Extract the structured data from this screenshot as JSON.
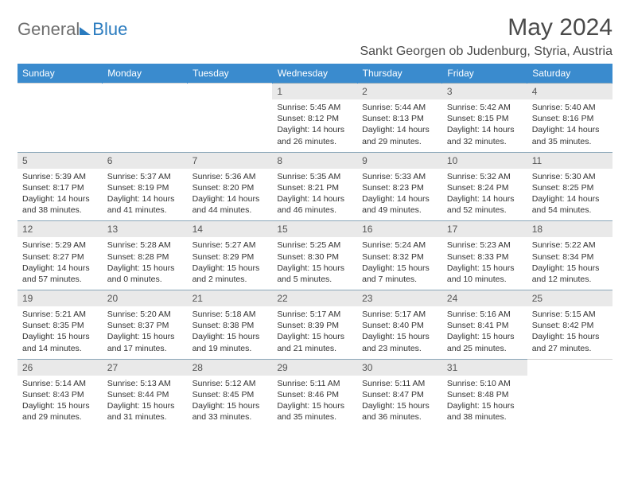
{
  "logo": {
    "text1": "General",
    "text2": "Blue"
  },
  "title": "May 2024",
  "location": "Sankt Georgen ob Judenburg, Styria, Austria",
  "colors": {
    "header_bg": "#3a8bce",
    "header_text": "#ffffff",
    "daynum_bg": "#e9e9e9",
    "border_top": "#8aa6b8",
    "logo_gray": "#6e6e6e",
    "logo_blue": "#2a7bbf",
    "text": "#333333",
    "page_bg": "#ffffff"
  },
  "dayHeaders": [
    "Sunday",
    "Monday",
    "Tuesday",
    "Wednesday",
    "Thursday",
    "Friday",
    "Saturday"
  ],
  "weeks": [
    [
      null,
      null,
      null,
      {
        "n": "1",
        "sr": "5:45 AM",
        "ss": "8:12 PM",
        "dl": "14 hours and 26 minutes."
      },
      {
        "n": "2",
        "sr": "5:44 AM",
        "ss": "8:13 PM",
        "dl": "14 hours and 29 minutes."
      },
      {
        "n": "3",
        "sr": "5:42 AM",
        "ss": "8:15 PM",
        "dl": "14 hours and 32 minutes."
      },
      {
        "n": "4",
        "sr": "5:40 AM",
        "ss": "8:16 PM",
        "dl": "14 hours and 35 minutes."
      }
    ],
    [
      {
        "n": "5",
        "sr": "5:39 AM",
        "ss": "8:17 PM",
        "dl": "14 hours and 38 minutes."
      },
      {
        "n": "6",
        "sr": "5:37 AM",
        "ss": "8:19 PM",
        "dl": "14 hours and 41 minutes."
      },
      {
        "n": "7",
        "sr": "5:36 AM",
        "ss": "8:20 PM",
        "dl": "14 hours and 44 minutes."
      },
      {
        "n": "8",
        "sr": "5:35 AM",
        "ss": "8:21 PM",
        "dl": "14 hours and 46 minutes."
      },
      {
        "n": "9",
        "sr": "5:33 AM",
        "ss": "8:23 PM",
        "dl": "14 hours and 49 minutes."
      },
      {
        "n": "10",
        "sr": "5:32 AM",
        "ss": "8:24 PM",
        "dl": "14 hours and 52 minutes."
      },
      {
        "n": "11",
        "sr": "5:30 AM",
        "ss": "8:25 PM",
        "dl": "14 hours and 54 minutes."
      }
    ],
    [
      {
        "n": "12",
        "sr": "5:29 AM",
        "ss": "8:27 PM",
        "dl": "14 hours and 57 minutes."
      },
      {
        "n": "13",
        "sr": "5:28 AM",
        "ss": "8:28 PM",
        "dl": "15 hours and 0 minutes."
      },
      {
        "n": "14",
        "sr": "5:27 AM",
        "ss": "8:29 PM",
        "dl": "15 hours and 2 minutes."
      },
      {
        "n": "15",
        "sr": "5:25 AM",
        "ss": "8:30 PM",
        "dl": "15 hours and 5 minutes."
      },
      {
        "n": "16",
        "sr": "5:24 AM",
        "ss": "8:32 PM",
        "dl": "15 hours and 7 minutes."
      },
      {
        "n": "17",
        "sr": "5:23 AM",
        "ss": "8:33 PM",
        "dl": "15 hours and 10 minutes."
      },
      {
        "n": "18",
        "sr": "5:22 AM",
        "ss": "8:34 PM",
        "dl": "15 hours and 12 minutes."
      }
    ],
    [
      {
        "n": "19",
        "sr": "5:21 AM",
        "ss": "8:35 PM",
        "dl": "15 hours and 14 minutes."
      },
      {
        "n": "20",
        "sr": "5:20 AM",
        "ss": "8:37 PM",
        "dl": "15 hours and 17 minutes."
      },
      {
        "n": "21",
        "sr": "5:18 AM",
        "ss": "8:38 PM",
        "dl": "15 hours and 19 minutes."
      },
      {
        "n": "22",
        "sr": "5:17 AM",
        "ss": "8:39 PM",
        "dl": "15 hours and 21 minutes."
      },
      {
        "n": "23",
        "sr": "5:17 AM",
        "ss": "8:40 PM",
        "dl": "15 hours and 23 minutes."
      },
      {
        "n": "24",
        "sr": "5:16 AM",
        "ss": "8:41 PM",
        "dl": "15 hours and 25 minutes."
      },
      {
        "n": "25",
        "sr": "5:15 AM",
        "ss": "8:42 PM",
        "dl": "15 hours and 27 minutes."
      }
    ],
    [
      {
        "n": "26",
        "sr": "5:14 AM",
        "ss": "8:43 PM",
        "dl": "15 hours and 29 minutes."
      },
      {
        "n": "27",
        "sr": "5:13 AM",
        "ss": "8:44 PM",
        "dl": "15 hours and 31 minutes."
      },
      {
        "n": "28",
        "sr": "5:12 AM",
        "ss": "8:45 PM",
        "dl": "15 hours and 33 minutes."
      },
      {
        "n": "29",
        "sr": "5:11 AM",
        "ss": "8:46 PM",
        "dl": "15 hours and 35 minutes."
      },
      {
        "n": "30",
        "sr": "5:11 AM",
        "ss": "8:47 PM",
        "dl": "15 hours and 36 minutes."
      },
      {
        "n": "31",
        "sr": "5:10 AM",
        "ss": "8:48 PM",
        "dl": "15 hours and 38 minutes."
      },
      null
    ]
  ],
  "labels": {
    "sunrise": "Sunrise:",
    "sunset": "Sunset:",
    "daylight": "Daylight:"
  }
}
